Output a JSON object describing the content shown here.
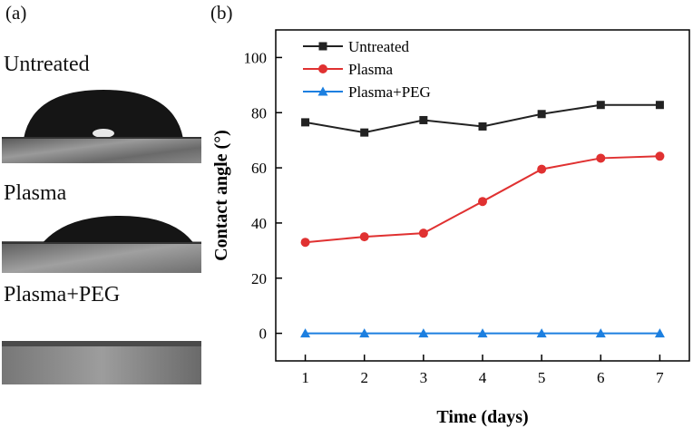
{
  "panels": {
    "a": "(a)",
    "b": "(b)"
  },
  "photos": [
    {
      "label": "Untreated"
    },
    {
      "label": "Plasma"
    },
    {
      "label": "Plasma+PEG"
    }
  ],
  "chart_data": {
    "type": "line",
    "title": "",
    "xlabel": "Time (days)",
    "ylabel": "Contact angle (°)",
    "x": [
      1,
      2,
      3,
      4,
      5,
      6,
      7
    ],
    "xlim": [
      0.5,
      7.5
    ],
    "ylim": [
      -10,
      110
    ],
    "xticks": [
      "1",
      "2",
      "3",
      "4",
      "5",
      "6",
      "7"
    ],
    "yticks": [
      "0",
      "20",
      "40",
      "60",
      "80",
      "100"
    ],
    "ytick_values": [
      0,
      20,
      40,
      60,
      80,
      100
    ],
    "legend_position": "top-left",
    "series": [
      {
        "name": "Untreated",
        "color": "#222222",
        "marker": "square",
        "values": [
          76.5,
          72.8,
          77.3,
          75.0,
          79.5,
          82.8,
          82.8
        ]
      },
      {
        "name": "Plasma",
        "color": "#e03131",
        "marker": "circle",
        "values": [
          33.0,
          35.0,
          36.3,
          47.8,
          59.5,
          63.5,
          64.2
        ]
      },
      {
        "name": "Plasma+PEG",
        "color": "#1c7fe0",
        "marker": "triangle",
        "values": [
          0,
          0,
          0,
          0,
          0,
          0,
          0
        ]
      }
    ]
  }
}
